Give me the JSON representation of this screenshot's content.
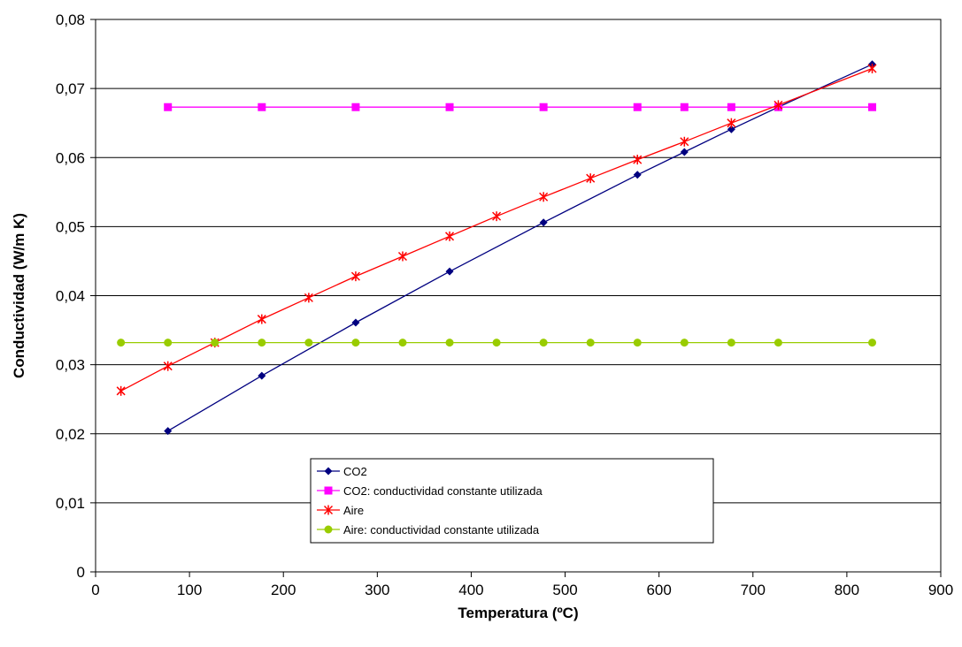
{
  "chart_data": {
    "type": "line",
    "xlabel": "Temperatura (ºC)",
    "ylabel": "Conductividad (W/m K)",
    "xlim": [
      0,
      900
    ],
    "ylim": [
      0,
      0.08
    ],
    "xticks": [
      0,
      100,
      200,
      300,
      400,
      500,
      600,
      700,
      800,
      900
    ],
    "yticks": [
      0,
      0.01,
      0.02,
      0.03,
      0.04,
      0.05,
      0.06,
      0.07,
      0.08
    ],
    "xtick_labels": [
      "0",
      "100",
      "200",
      "300",
      "400",
      "500",
      "600",
      "700",
      "800",
      "900"
    ],
    "ytick_labels": [
      "0",
      "0,01",
      "0,02",
      "0,03",
      "0,04",
      "0,05",
      "0,06",
      "0,07",
      "0,08"
    ],
    "grid": "horizontal",
    "legend_position": "lower-center",
    "series": [
      {
        "name": "CO2",
        "color": "#000080",
        "marker": "diamond",
        "x": [
          77,
          177,
          277,
          377,
          477,
          577,
          627,
          677,
          727,
          827
        ],
        "y": [
          0.0204,
          0.0284,
          0.0361,
          0.0435,
          0.0506,
          0.0575,
          0.0608,
          0.0641,
          0.0673,
          0.0735
        ]
      },
      {
        "name": "CO2: conductividad constante utilizada",
        "color": "#FF00FF",
        "marker": "square",
        "x": [
          77,
          177,
          277,
          377,
          477,
          577,
          627,
          677,
          727,
          827
        ],
        "y": [
          0.0673,
          0.0673,
          0.0673,
          0.0673,
          0.0673,
          0.0673,
          0.0673,
          0.0673,
          0.0673,
          0.0673
        ]
      },
      {
        "name": "Aire",
        "color": "#FF0000",
        "marker": "star",
        "x": [
          27,
          77,
          127,
          177,
          227,
          277,
          327,
          377,
          427,
          477,
          527,
          577,
          627,
          677,
          727,
          827
        ],
        "y": [
          0.0262,
          0.0298,
          0.0332,
          0.0366,
          0.0397,
          0.0428,
          0.0457,
          0.0486,
          0.0515,
          0.0543,
          0.057,
          0.0597,
          0.0623,
          0.065,
          0.0676,
          0.0729
        ]
      },
      {
        "name": "Aire: conductividad constante utilizada",
        "color": "#99CC00",
        "marker": "circle",
        "x": [
          27,
          77,
          127,
          177,
          227,
          277,
          327,
          377,
          427,
          477,
          527,
          577,
          627,
          677,
          727,
          827
        ],
        "y": [
          0.0332,
          0.0332,
          0.0332,
          0.0332,
          0.0332,
          0.0332,
          0.0332,
          0.0332,
          0.0332,
          0.0332,
          0.0332,
          0.0332,
          0.0332,
          0.0332,
          0.0332,
          0.0332
        ]
      }
    ]
  }
}
